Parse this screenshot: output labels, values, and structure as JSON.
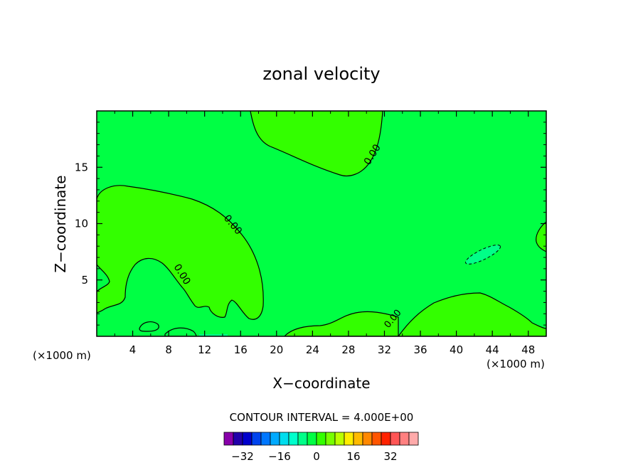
{
  "chart_data": {
    "type": "contour",
    "title": "zonal velocity",
    "xlabel": "X−coordinate",
    "ylabel": "Z−coordinate",
    "x_unit": "(×1000 m)",
    "x_unit_right": "(×1000 m)",
    "xlim": [
      0,
      50
    ],
    "ylim": [
      0,
      20
    ],
    "x_ticks": [
      4,
      8,
      12,
      16,
      20,
      24,
      28,
      32,
      36,
      40,
      44,
      48
    ],
    "y_ticks": [
      5,
      10,
      15
    ],
    "contour_interval_text": "CONTOUR INTERVAL = 4.000E+00",
    "contour_labels": [
      {
        "text": "0.00",
        "x": 30.3,
        "z": 16.2
      },
      {
        "text": "0.00",
        "x": 14.8,
        "z": 9.3
      },
      {
        "text": "0.00",
        "x": 9.3,
        "z": 5.0
      },
      {
        "text": "0.00",
        "x": 33.5,
        "z": 1.6
      }
    ],
    "colorbar": {
      "ticks": [
        "−32",
        "−16",
        "0",
        "16",
        "32"
      ],
      "colors": [
        "#8800aa",
        "#2200aa",
        "#0000cc",
        "#0044ee",
        "#0077ff",
        "#00aaff",
        "#00ddee",
        "#00ffcc",
        "#00ff88",
        "#00ff44",
        "#33ff00",
        "#77ff00",
        "#bbff00",
        "#ffee00",
        "#ffbb00",
        "#ff8800",
        "#ff5500",
        "#ff2200",
        "#ff5555",
        "#ff8080",
        "#ffaaaa"
      ]
    },
    "field_colors": {
      "background": "#00ff44",
      "positive": "#33ff00",
      "negative": "#00ff88"
    }
  }
}
